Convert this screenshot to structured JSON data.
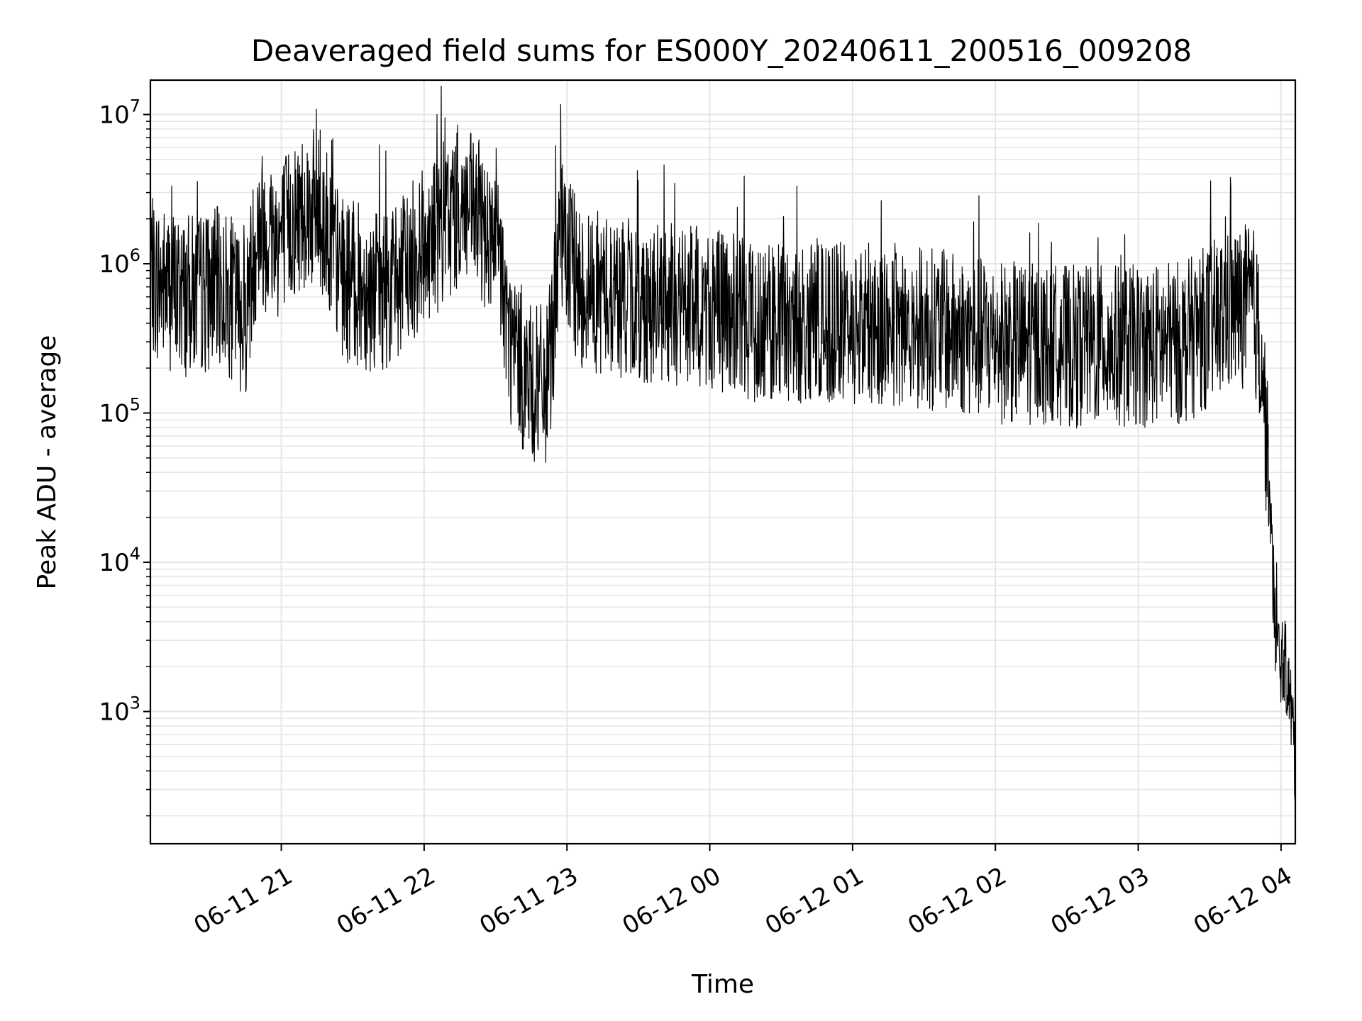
{
  "chart_data": {
    "type": "line",
    "title": "Deaveraged field sums for ES000Y_20240611_200516_009208",
    "xlabel": "Time",
    "ylabel": "Peak ADU - average",
    "yscale": "log",
    "xlim": [
      "2024-06-11 20:05",
      "2024-06-12 04:06"
    ],
    "ylim": [
      130,
      17000000
    ],
    "grid": true,
    "line_color": "#000000",
    "grid_color": "#e6e6e6",
    "x_ticks": [
      {
        "value": "2024-06-11 21:00",
        "label": "06-11 21"
      },
      {
        "value": "2024-06-11 22:00",
        "label": "06-11 22"
      },
      {
        "value": "2024-06-11 23:00",
        "label": "06-11 23"
      },
      {
        "value": "2024-06-12 00:00",
        "label": "06-12 00"
      },
      {
        "value": "2024-06-12 01:00",
        "label": "06-12 01"
      },
      {
        "value": "2024-06-12 02:00",
        "label": "06-12 02"
      },
      {
        "value": "2024-06-12 03:00",
        "label": "06-12 03"
      },
      {
        "value": "2024-06-12 04:00",
        "label": "06-12 04"
      }
    ],
    "y_ticks": [
      {
        "value": 1000,
        "base": "10",
        "exp": "3"
      },
      {
        "value": 10000,
        "base": "10",
        "exp": "4"
      },
      {
        "value": 100000,
        "base": "10",
        "exp": "5"
      },
      {
        "value": 1000000,
        "base": "10",
        "exp": "6"
      },
      {
        "value": 10000000,
        "base": "10",
        "exp": "7"
      }
    ],
    "series": [
      {
        "values": [
          {
            "x": "2024-06-11 20:05",
            "y": 800000
          },
          {
            "x": "2024-06-11 20:20",
            "y": 600000
          },
          {
            "x": "2024-06-11 20:35",
            "y": 700000
          },
          {
            "x": "2024-06-11 20:45",
            "y": 450000
          },
          {
            "x": "2024-06-11 20:50",
            "y": 1800000
          },
          {
            "x": "2024-06-11 21:00",
            "y": 1500000
          },
          {
            "x": "2024-06-11 21:10",
            "y": 2500000
          },
          {
            "x": "2024-06-11 21:18",
            "y": 2000000
          },
          {
            "x": "2024-06-11 21:25",
            "y": 800000
          },
          {
            "x": "2024-06-11 21:40",
            "y": 650000
          },
          {
            "x": "2024-06-11 21:50",
            "y": 800000
          },
          {
            "x": "2024-06-11 22:00",
            "y": 1300000
          },
          {
            "x": "2024-06-11 22:15",
            "y": 2500000
          },
          {
            "x": "2024-06-11 22:25",
            "y": 1800000
          },
          {
            "x": "2024-06-11 22:32",
            "y": 1000000
          },
          {
            "x": "2024-06-11 22:36",
            "y": 300000
          },
          {
            "x": "2024-06-11 22:45",
            "y": 150000
          },
          {
            "x": "2024-06-11 22:52",
            "y": 150000
          },
          {
            "x": "2024-06-11 22:57",
            "y": 1500000
          },
          {
            "x": "2024-06-11 23:05",
            "y": 700000
          },
          {
            "x": "2024-06-11 23:30",
            "y": 550000
          },
          {
            "x": "2024-06-12 00:00",
            "y": 500000
          },
          {
            "x": "2024-06-12 00:30",
            "y": 380000
          },
          {
            "x": "2024-06-12 01:00",
            "y": 400000
          },
          {
            "x": "2024-06-12 01:30",
            "y": 380000
          },
          {
            "x": "2024-06-12 02:00",
            "y": 300000
          },
          {
            "x": "2024-06-12 02:30",
            "y": 280000
          },
          {
            "x": "2024-06-12 03:00",
            "y": 280000
          },
          {
            "x": "2024-06-12 03:20",
            "y": 300000
          },
          {
            "x": "2024-06-12 03:35",
            "y": 450000
          },
          {
            "x": "2024-06-12 03:48",
            "y": 550000
          },
          {
            "x": "2024-06-12 03:52",
            "y": 250000
          },
          {
            "x": "2024-06-12 03:55",
            "y": 28000
          },
          {
            "x": "2024-06-12 03:58",
            "y": 2500
          },
          {
            "x": "2024-06-12 04:02",
            "y": 2000
          },
          {
            "x": "2024-06-12 04:05",
            "y": 800
          },
          {
            "x": "2024-06-12 04:06",
            "y": 400
          }
        ]
      }
    ]
  }
}
